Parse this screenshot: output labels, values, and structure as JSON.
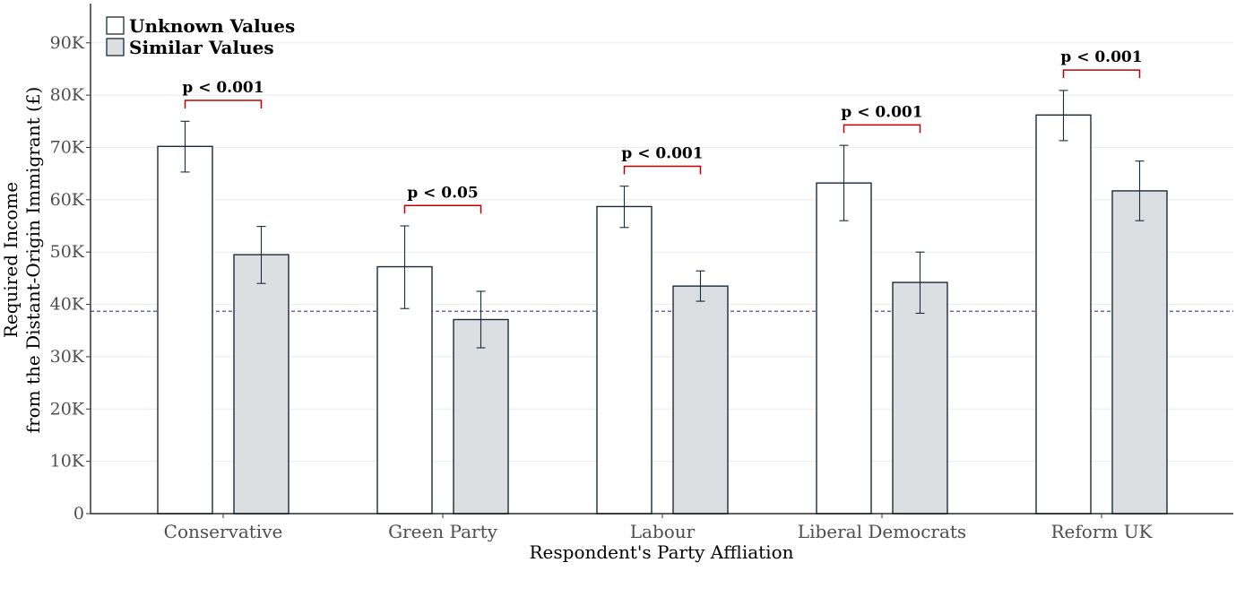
{
  "colors": {
    "bar_outline": "#1b2a3a",
    "unknown_fill": "#ffffff",
    "similar_fill": "#dcdfe2",
    "bracket": "#c00000",
    "reference_line": "#3a3a9a",
    "grid": "#ebebeb"
  },
  "chart_data": {
    "type": "bar",
    "xlabel": "Respondent's Party Affliation",
    "ylabel_lines": [
      "Required Income",
      "from the Distant-Origin Immigrant (£)"
    ],
    "categories": [
      "Conservative",
      "Green Party",
      "Labour",
      "Liberal Democrats",
      "Reform UK"
    ],
    "y_ticks": [
      0,
      10000,
      20000,
      30000,
      40000,
      50000,
      60000,
      70000,
      80000,
      90000
    ],
    "y_tick_labels": [
      "0",
      "10K",
      "20K",
      "30K",
      "40K",
      "50K",
      "60K",
      "70K",
      "80K",
      "90K"
    ],
    "ylim": [
      0,
      97500
    ],
    "grid": true,
    "legend_placement": "top-left",
    "reference_line": 38700,
    "series": [
      {
        "name": "Unknown Values",
        "values": [
          70200,
          47200,
          58700,
          63200,
          76200
        ],
        "error_low": [
          65300,
          39200,
          54700,
          56000,
          71300
        ],
        "error_high": [
          75000,
          55000,
          62600,
          70400,
          80900
        ]
      },
      {
        "name": "Similar Values",
        "values": [
          49500,
          37100,
          43500,
          44200,
          61700
        ],
        "error_low": [
          44000,
          31700,
          40600,
          38300,
          56000
        ],
        "error_high": [
          54900,
          42500,
          46400,
          50000,
          67400
        ]
      }
    ],
    "annotations": [
      {
        "text": "p < 0.001",
        "y": 79000
      },
      {
        "text": "p < 0.05",
        "y": 58900
      },
      {
        "text": "p < 0.001",
        "y": 66400
      },
      {
        "text": "p < 0.001",
        "y": 74300
      },
      {
        "text": "p < 0.001",
        "y": 84800
      }
    ]
  }
}
